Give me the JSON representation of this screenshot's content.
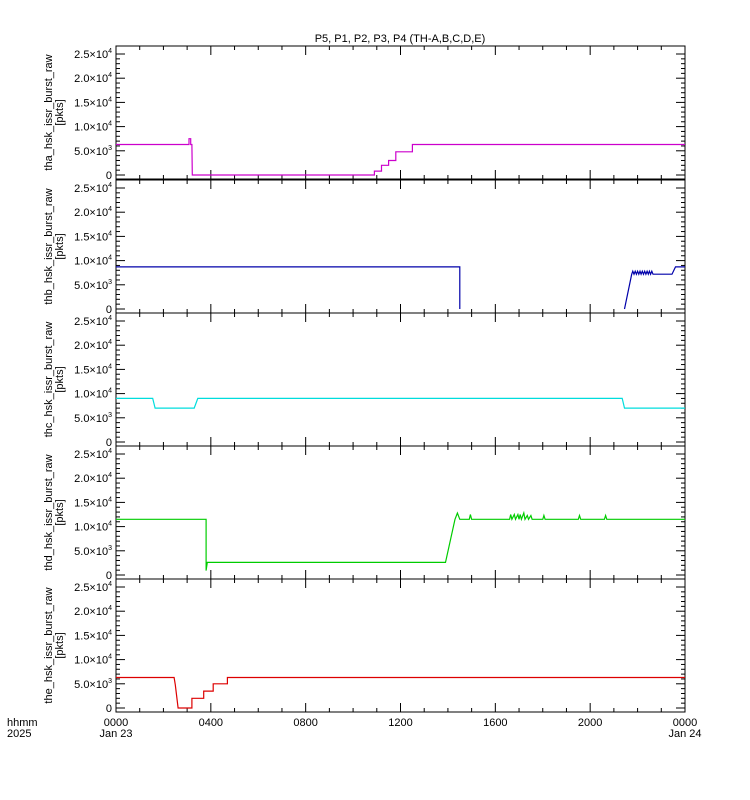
{
  "chart_data": {
    "type": "line",
    "title": "P5, P1, P2, P3, P4 (TH-A,B,C,D,E)",
    "xaxis": {
      "ticks": [
        "0000",
        "0400",
        "0800",
        "1200",
        "1600",
        "2000",
        "0000"
      ],
      "date_left": "Jan 23",
      "date_right": "Jan 24",
      "label_line1": "hhmm",
      "label_line2": "2025",
      "range_hours": [
        0,
        24
      ]
    },
    "y_tick_labels": [
      {
        "base": "0",
        "exp": ""
      },
      {
        "base": "5.0×10",
        "exp": "3"
      },
      {
        "base": "1.0×10",
        "exp": "4"
      },
      {
        "base": "1.5×10",
        "exp": "4"
      },
      {
        "base": "2.0×10",
        "exp": "4"
      },
      {
        "base": "2.5×10",
        "exp": "4"
      }
    ],
    "panels": [
      {
        "ylabel": "tha_hsk_issr_burst_raw",
        "unit": "[pkts]",
        "color": "#cc00cc",
        "ylim": [
          0,
          25000
        ],
        "points": [
          [
            0,
            6300
          ],
          [
            3.08,
            6300
          ],
          [
            3.08,
            7500
          ],
          [
            3.15,
            7500
          ],
          [
            3.15,
            6300
          ],
          [
            3.2,
            6300
          ],
          [
            3.22,
            0
          ],
          [
            10.9,
            0
          ],
          [
            10.9,
            800
          ],
          [
            11.2,
            800
          ],
          [
            11.2,
            2000
          ],
          [
            11.5,
            2000
          ],
          [
            11.5,
            3000
          ],
          [
            11.8,
            3000
          ],
          [
            11.8,
            4800
          ],
          [
            12.5,
            4800
          ],
          [
            12.5,
            6300
          ],
          [
            24,
            6300
          ]
        ]
      },
      {
        "ylabel": "thb_hsk_issr_burst_raw",
        "unit": "[pkts]",
        "color": "#0000aa",
        "ylim": [
          0,
          25000
        ],
        "points": [
          [
            0,
            8700
          ],
          [
            14.5,
            8700
          ],
          [
            14.5,
            0
          ]
        ],
        "points2": [
          [
            21.45,
            0
          ],
          [
            21.75,
            7200
          ],
          [
            21.8,
            7800
          ],
          [
            21.85,
            7200
          ],
          [
            21.9,
            7800
          ],
          [
            21.95,
            7200
          ],
          [
            22.0,
            7800
          ],
          [
            22.05,
            7200
          ],
          [
            22.1,
            7800
          ],
          [
            22.15,
            7200
          ],
          [
            22.2,
            7800
          ],
          [
            22.25,
            7200
          ],
          [
            22.3,
            7800
          ],
          [
            22.35,
            7200
          ],
          [
            22.4,
            7800
          ],
          [
            22.45,
            7200
          ],
          [
            22.5,
            7800
          ],
          [
            22.55,
            7200
          ],
          [
            22.6,
            7800
          ],
          [
            22.65,
            7200
          ],
          [
            23.45,
            7200
          ],
          [
            23.6,
            8700
          ],
          [
            24,
            8700
          ]
        ]
      },
      {
        "ylabel": "thc_hsk_issr_burst_raw",
        "unit": "[pkts]",
        "color": "#00dddd",
        "ylim": [
          0,
          25000
        ],
        "points": [
          [
            0,
            9000
          ],
          [
            1.55,
            9000
          ],
          [
            1.65,
            7000
          ],
          [
            3.3,
            7000
          ],
          [
            3.45,
            9000
          ],
          [
            21.35,
            9000
          ],
          [
            21.45,
            7000
          ],
          [
            24,
            7000
          ]
        ]
      },
      {
        "ylabel": "thd_hsk_issr_burst_raw",
        "unit": "[pkts]",
        "color": "#00cc00",
        "ylim": [
          0,
          25000
        ],
        "points": [
          [
            0,
            11500
          ],
          [
            3.8,
            11500
          ],
          [
            3.8,
            900
          ],
          [
            3.85,
            2600
          ],
          [
            13.9,
            2600
          ],
          [
            14.3,
            11500
          ],
          [
            14.4,
            12800
          ],
          [
            14.5,
            11500
          ],
          [
            14.9,
            11500
          ],
          [
            14.95,
            12500
          ],
          [
            15.0,
            11500
          ],
          [
            16.6,
            11500
          ],
          [
            16.65,
            12500
          ],
          [
            16.7,
            11500
          ],
          [
            16.8,
            12500
          ],
          [
            16.85,
            11500
          ],
          [
            16.95,
            12500
          ],
          [
            17.0,
            11500
          ],
          [
            17.05,
            12500
          ],
          [
            17.1,
            11500
          ],
          [
            17.2,
            12800
          ],
          [
            17.25,
            11500
          ],
          [
            17.35,
            12300
          ],
          [
            17.4,
            11500
          ],
          [
            17.5,
            12300
          ],
          [
            17.55,
            11500
          ],
          [
            18.0,
            11500
          ],
          [
            18.05,
            12300
          ],
          [
            18.1,
            11500
          ],
          [
            19.5,
            11500
          ],
          [
            19.55,
            12300
          ],
          [
            19.6,
            11500
          ],
          [
            20.6,
            11500
          ],
          [
            20.65,
            12300
          ],
          [
            20.7,
            11500
          ],
          [
            24,
            11500
          ]
        ]
      },
      {
        "ylabel": "the_hsk_issr_burst_raw",
        "unit": "[pkts]",
        "color": "#dd0000",
        "ylim": [
          0,
          25000
        ],
        "points": [
          [
            0,
            6300
          ],
          [
            2.45,
            6300
          ],
          [
            2.5,
            4800
          ],
          [
            2.62,
            0
          ],
          [
            3.2,
            0
          ],
          [
            3.2,
            2000
          ],
          [
            3.7,
            2000
          ],
          [
            3.7,
            3500
          ],
          [
            4.1,
            3500
          ],
          [
            4.1,
            5000
          ],
          [
            4.7,
            5000
          ],
          [
            4.7,
            6300
          ],
          [
            24,
            6300
          ]
        ]
      }
    ]
  }
}
